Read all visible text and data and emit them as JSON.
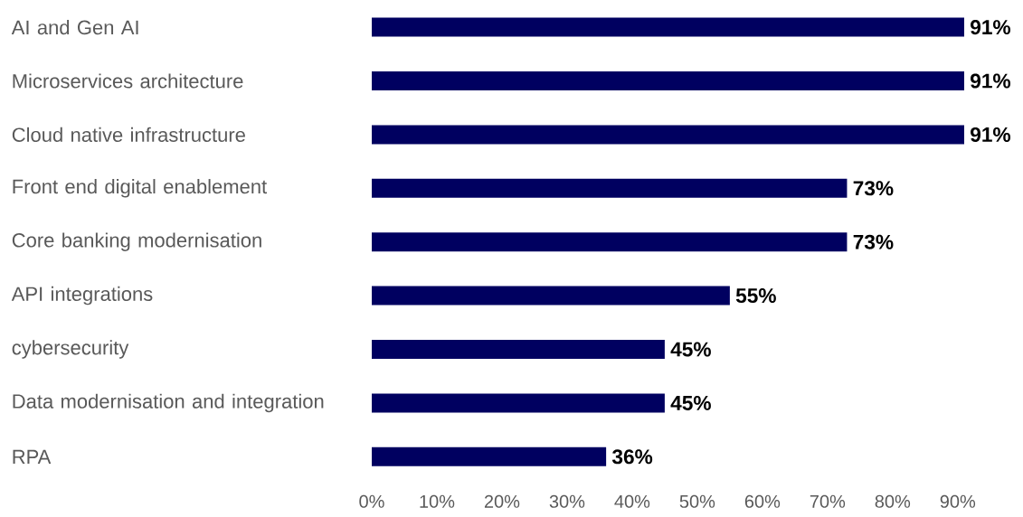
{
  "chart_data": {
    "type": "bar",
    "orientation": "horizontal",
    "categories": [
      "AI and Gen AI",
      "Microservices architecture",
      "Cloud native infrastructure",
      "Front end digital enablement",
      "Core banking modernisation",
      "API integrations",
      "cybersecurity",
      "Data modernisation and integration",
      "RPA"
    ],
    "values": [
      91,
      91,
      91,
      73,
      73,
      55,
      45,
      45,
      36
    ],
    "value_labels": [
      "91%",
      "91%",
      "91%",
      "73%",
      "73%",
      "55%",
      "45%",
      "45%",
      "36%"
    ],
    "color": "#000060",
    "xlim": [
      0,
      91
    ],
    "xticks": [
      {
        "value": 0,
        "label": "0%"
      },
      {
        "value": 10,
        "label": "10%"
      },
      {
        "value": 20,
        "label": "20%"
      },
      {
        "value": 30,
        "label": "30%"
      },
      {
        "value": 40,
        "label": "40%"
      },
      {
        "value": 50,
        "label": "50%"
      },
      {
        "value": 60,
        "label": "60%"
      },
      {
        "value": 70,
        "label": "70%"
      },
      {
        "value": 80,
        "label": "80%"
      },
      {
        "value": 90,
        "label": "90%"
      }
    ]
  }
}
